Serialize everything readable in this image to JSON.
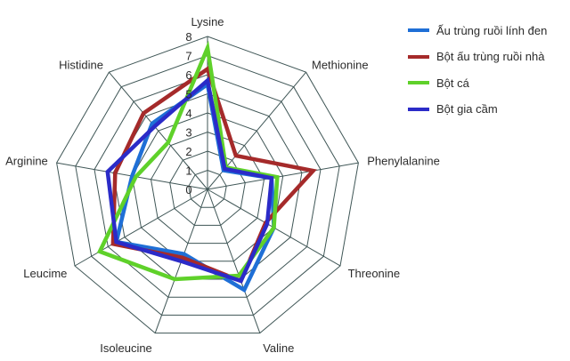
{
  "chart_data": {
    "type": "radar",
    "title": "",
    "axes": [
      "Lysine",
      "Methionine",
      "Phenylalanine",
      "Threonine",
      "Valine",
      "Isoleucine",
      "Leucime",
      "Arginine",
      "Histidine"
    ],
    "r_range": [
      0,
      8
    ],
    "ticks": [
      0,
      1,
      2,
      3,
      4,
      5,
      6,
      7,
      8
    ],
    "grid": true,
    "legend_position": "top-right",
    "series": [
      {
        "name": "Ấu trùng ruồi lính đen",
        "color": "#1f6fd6",
        "values": [
          5.5,
          1.3,
          3.4,
          4.0,
          5.6,
          3.6,
          5.5,
          4.0,
          4.5
        ]
      },
      {
        "name": "Bột ấu trùng ruồi nhà",
        "color": "#a52a2a",
        "values": [
          6.3,
          2.3,
          5.6,
          3.5,
          5.1,
          3.8,
          5.7,
          4.9,
          5.2
        ]
      },
      {
        "name": "Bột cá",
        "color": "#5fd12a",
        "values": [
          7.4,
          1.5,
          3.7,
          4.0,
          4.8,
          5.0,
          6.5,
          3.8,
          3.2
        ]
      },
      {
        "name": "Bột gia cầm",
        "color": "#2b2bc8",
        "values": [
          5.7,
          1.4,
          3.4,
          3.6,
          5.1,
          4.0,
          5.5,
          5.3,
          4.3
        ]
      }
    ]
  }
}
